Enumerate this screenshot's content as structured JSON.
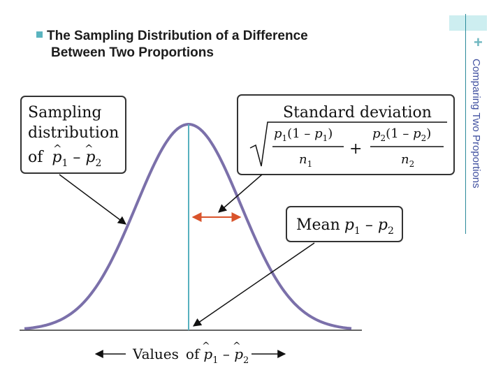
{
  "slide": {
    "title_line1": "The Sampling Distribution of a Difference",
    "title_line2": "Between Two Proportions",
    "side_title": "Comparing Two Proportions",
    "plus_symbol": "+"
  },
  "diagram": {
    "box_sampling": {
      "line1": "Sampling",
      "line2": "distribution",
      "line3_prefix": "of"
    },
    "box_sd": {
      "label": "Standard deviation"
    },
    "box_mean": {
      "label": "Mean"
    },
    "axis_label": "Values",
    "axis_of": "of",
    "colors": {
      "curve": "#7b70aa",
      "center": "#57b0bf",
      "arrow_red": "#d9532b"
    }
  }
}
